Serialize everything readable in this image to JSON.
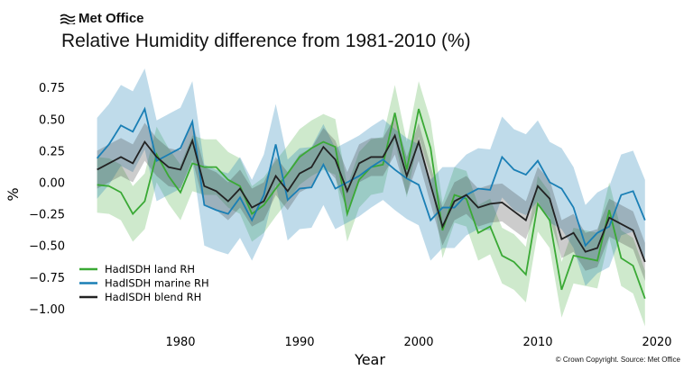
{
  "header": {
    "logo_text": "Met Office",
    "title": "Relative Humidity difference from 1981-2010 (%)"
  },
  "credit": "© Crown Copyright. Source: Met Office",
  "chart_data": {
    "type": "line",
    "title": "Relative Humidity difference from 1981-2010 (%)",
    "xlabel": "Year",
    "ylabel": "%",
    "xlim": [
      1971,
      2021
    ],
    "ylim": [
      -1.1,
      0.9
    ],
    "xticks": [
      1980,
      1990,
      2000,
      2010,
      2020
    ],
    "yticks": [
      0.75,
      0.5,
      0.25,
      0.0,
      -0.25,
      -0.5,
      -0.75,
      -1.0
    ],
    "ytick_labels": [
      "0.75",
      "0.50",
      "0.25",
      "0.00",
      "−0.25",
      "−0.50",
      "−0.75",
      "−1.00"
    ],
    "grid": false,
    "legend_position": "bottom-left",
    "x": [
      1973,
      1974,
      1975,
      1976,
      1977,
      1978,
      1979,
      1980,
      1981,
      1982,
      1983,
      1984,
      1985,
      1986,
      1987,
      1988,
      1989,
      1990,
      1991,
      1992,
      1993,
      1994,
      1995,
      1996,
      1997,
      1998,
      1999,
      2000,
      2001,
      2002,
      2003,
      2004,
      2005,
      2006,
      2007,
      2008,
      2009,
      2010,
      2011,
      2012,
      2013,
      2014,
      2015,
      2016,
      2017,
      2018,
      2019
    ],
    "series": [
      {
        "name": "HadISDH land RH",
        "color": "#3aa935",
        "band_halfwidth": 0.22,
        "values": [
          -0.02,
          -0.03,
          -0.08,
          -0.25,
          -0.15,
          0.22,
          0.05,
          -0.08,
          0.15,
          0.12,
          0.12,
          0.02,
          -0.03,
          -0.25,
          -0.18,
          -0.05,
          0.07,
          0.2,
          0.27,
          0.32,
          0.28,
          -0.25,
          0.02,
          0.12,
          0.14,
          0.55,
          0.1,
          0.58,
          0.27,
          -0.38,
          -0.1,
          -0.13,
          -0.4,
          -0.35,
          -0.58,
          -0.63,
          -0.73,
          -0.17,
          -0.3,
          -0.85,
          -0.58,
          -0.6,
          -0.62,
          -0.22,
          -0.6,
          -0.66,
          -0.92
        ]
      },
      {
        "name": "HadISDH marine RH",
        "color": "#1a7fb5",
        "band_halfwidth": 0.32,
        "values": [
          0.19,
          0.3,
          0.45,
          0.4,
          0.58,
          0.17,
          0.22,
          0.27,
          0.48,
          -0.18,
          -0.22,
          -0.25,
          -0.12,
          -0.3,
          -0.1,
          0.3,
          -0.14,
          -0.05,
          -0.04,
          0.14,
          -0.05,
          0.0,
          0.05,
          0.12,
          0.18,
          0.1,
          0.03,
          -0.02,
          -0.3,
          -0.2,
          -0.2,
          -0.1,
          -0.05,
          -0.06,
          0.2,
          0.1,
          0.06,
          0.17,
          0.0,
          -0.05,
          -0.2,
          -0.5,
          -0.4,
          -0.35,
          -0.1,
          -0.07,
          -0.3
        ]
      },
      {
        "name": "HadISDH blend RH",
        "color": "#222222",
        "band_halfwidth": 0.15,
        "values": [
          0.1,
          0.15,
          0.2,
          0.15,
          0.32,
          0.2,
          0.12,
          0.1,
          0.33,
          -0.03,
          -0.07,
          -0.15,
          -0.05,
          -0.2,
          -0.15,
          0.05,
          -0.07,
          0.07,
          0.12,
          0.28,
          0.18,
          -0.07,
          0.15,
          0.2,
          0.2,
          0.37,
          0.05,
          0.32,
          -0.02,
          -0.35,
          -0.15,
          -0.1,
          -0.2,
          -0.17,
          -0.16,
          -0.23,
          -0.3,
          -0.03,
          -0.13,
          -0.45,
          -0.4,
          -0.55,
          -0.52,
          -0.28,
          -0.33,
          -0.38,
          -0.63
        ]
      }
    ]
  }
}
